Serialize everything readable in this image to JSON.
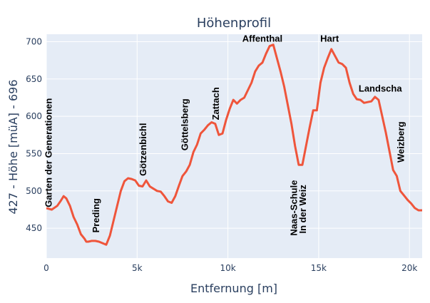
{
  "chart_data": {
    "type": "line",
    "title": "Höhenprofil",
    "xlabel": "Entfernung [m]",
    "ylabel": "427  -  Höhe [müA]  -  696",
    "xlim": [
      0,
      20700
    ],
    "ylim": [
      410,
      710
    ],
    "x_ticks": [
      0,
      5000,
      10000,
      15000,
      20000
    ],
    "x_tick_labels": [
      "0",
      "5k",
      "10k",
      "15k",
      "20k"
    ],
    "y_ticks": [
      450,
      500,
      550,
      600,
      650,
      700
    ],
    "y_tick_labels": [
      "450",
      "500",
      "550",
      "600",
      "650",
      "700"
    ],
    "grid": true,
    "line_color": "#ef553b",
    "series": [
      {
        "x": [
          0,
          300,
          600,
          800,
          950,
          1100,
          1300,
          1500,
          1700,
          1900,
          2100,
          2200,
          2300,
          2500,
          2700,
          2900,
          3100,
          3300,
          3500,
          3700,
          3900,
          4100,
          4300,
          4500,
          4700,
          4900,
          5100,
          5300,
          5500,
          5700,
          5900,
          6100,
          6300,
          6500,
          6700,
          6900,
          7100,
          7300,
          7500,
          7700,
          7900,
          8100,
          8300,
          8500,
          8700,
          8900,
          9100,
          9300,
          9500,
          9700,
          9900,
          10100,
          10300,
          10500,
          10700,
          10900,
          11100,
          11300,
          11500,
          11700,
          11900,
          12100,
          12300,
          12500,
          12700,
          12900,
          13100,
          13300,
          13500,
          13700,
          13900,
          14100,
          14300,
          14500,
          14700,
          14900,
          15100,
          15300,
          15500,
          15700,
          15900,
          16100,
          16300,
          16500,
          16700,
          16900,
          17100,
          17300,
          17500,
          17700,
          17900,
          18100,
          18300,
          18500,
          18700,
          18900,
          19100,
          19300,
          19500,
          19700,
          19900,
          20100,
          20300,
          20500,
          20700
        ],
        "y": [
          477,
          475,
          480,
          487,
          493,
          490,
          480,
          465,
          455,
          442,
          436,
          432,
          432,
          433,
          433,
          432,
          430,
          428,
          440,
          460,
          480,
          500,
          513,
          517,
          516,
          514,
          507,
          506,
          514,
          506,
          503,
          500,
          499,
          493,
          486,
          484,
          493,
          507,
          520,
          526,
          535,
          552,
          562,
          577,
          582,
          588,
          592,
          590,
          575,
          577,
          595,
          610,
          622,
          617,
          622,
          625,
          635,
          645,
          660,
          668,
          672,
          684,
          694,
          696,
          678,
          660,
          640,
          615,
          590,
          560,
          535,
          535,
          560,
          585,
          608,
          608,
          645,
          665,
          678,
          690,
          681,
          672,
          670,
          665,
          645,
          630,
          623,
          622,
          618,
          619,
          620,
          626,
          622,
          600,
          578,
          553,
          528,
          520,
          500,
          494,
          488,
          483,
          477,
          474,
          474
        ]
      }
    ],
    "annotations": [
      {
        "text": "Garten der Generationen",
        "x": 300,
        "y": 478,
        "orient": "vertical"
      },
      {
        "text": "Preding",
        "x": 2900,
        "y": 444,
        "orient": "vertical"
      },
      {
        "text": "Götzenbichl",
        "x": 5500,
        "y": 520,
        "orient": "vertical"
      },
      {
        "text": "Göttelsberg",
        "x": 7800,
        "y": 554,
        "orient": "vertical"
      },
      {
        "text": "Zattach",
        "x": 9500,
        "y": 595,
        "orient": "vertical"
      },
      {
        "text": "Affenthal",
        "x": 11900,
        "y": 700,
        "orient": "horizontal"
      },
      {
        "text": "Naas-Schule",
        "x": 13800,
        "y": 440,
        "orient": "vertical"
      },
      {
        "text": "In der Weiz",
        "x": 14300,
        "y": 443,
        "orient": "vertical"
      },
      {
        "text": "Hart",
        "x": 15600,
        "y": 700,
        "orient": "horizontal"
      },
      {
        "text": "Landscha",
        "x": 17200,
        "y": 633,
        "orient": "horizontal-left"
      },
      {
        "text": "Weizberg",
        "x": 19700,
        "y": 538,
        "orient": "vertical"
      }
    ]
  }
}
